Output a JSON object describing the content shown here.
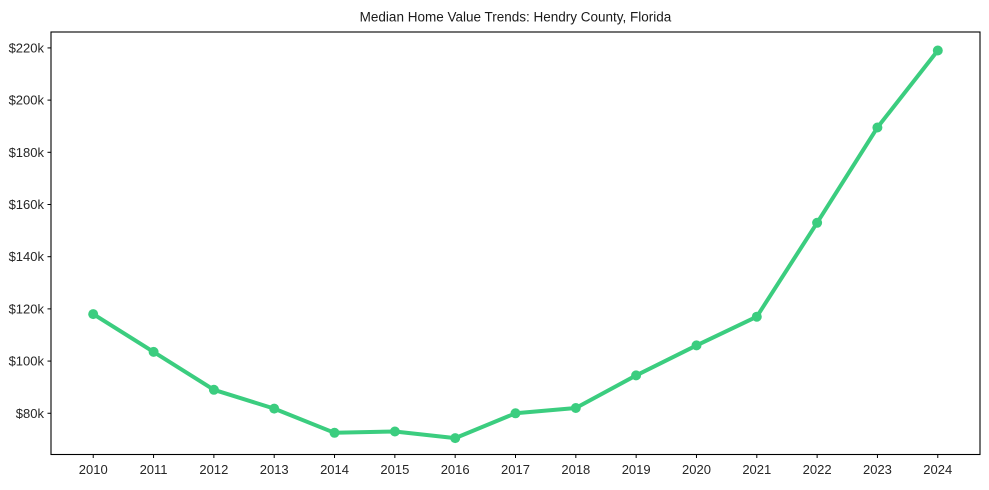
{
  "chart_data": {
    "type": "line",
    "title": "Median Home Value Trends: Hendry County, Florida",
    "xlabel": "",
    "ylabel": "",
    "x": [
      2010,
      2011,
      2012,
      2013,
      2014,
      2015,
      2016,
      2017,
      2018,
      2019,
      2020,
      2021,
      2022,
      2023,
      2024
    ],
    "x_tick_labels": [
      "2010",
      "2011",
      "2012",
      "2013",
      "2014",
      "2015",
      "2016",
      "2017",
      "2018",
      "2019",
      "2020",
      "2021",
      "2022",
      "2023",
      "2024"
    ],
    "values": [
      118000,
      103500,
      89000,
      81800,
      72500,
      73000,
      70500,
      80000,
      82000,
      94500,
      106000,
      117000,
      153000,
      189500,
      219000
    ],
    "y_ticks": {
      "values": [
        80000,
        100000,
        120000,
        140000,
        160000,
        180000,
        200000,
        220000
      ],
      "labels": [
        "$80k",
        "$100k",
        "$120k",
        "$140k",
        "$160k",
        "$180k",
        "$200k",
        "$220k"
      ]
    },
    "xlim": [
      2009.3,
      2024.7
    ],
    "ylim": [
      64200,
      226100
    ],
    "grid": false,
    "legend": "none",
    "marker": "circle",
    "colors": {
      "line": "#3bcd7f",
      "marker": "#3bcd7f",
      "axis": "#000000",
      "tick_text": "#262626",
      "title_text": "#1a1a1a",
      "background": "#ffffff"
    }
  }
}
